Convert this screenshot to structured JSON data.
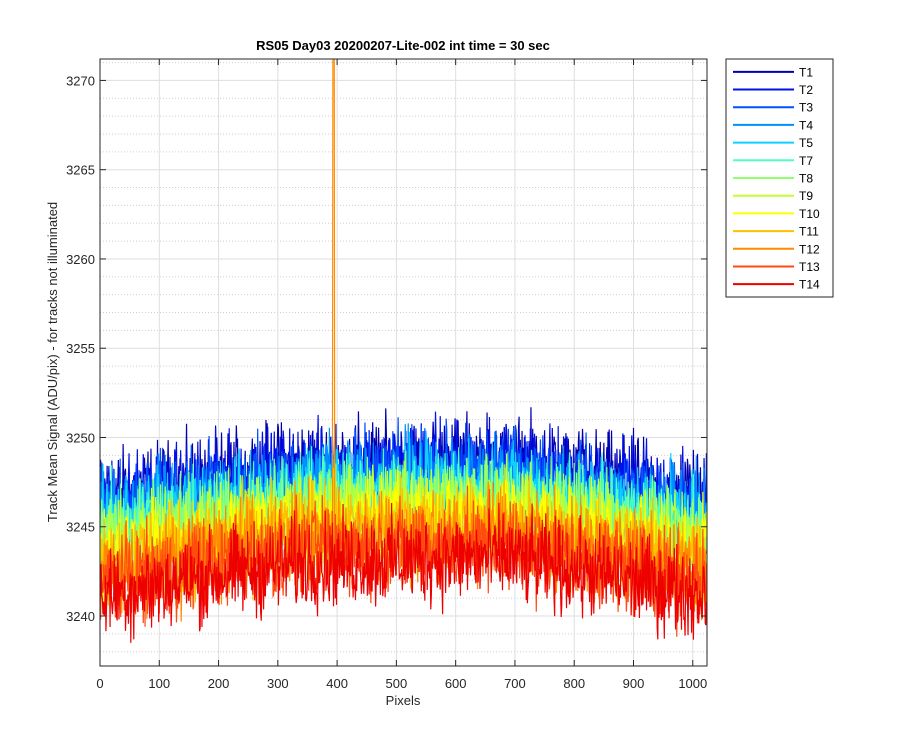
{
  "chart_data": {
    "type": "line",
    "title": "RS05 Day03 20200207-Lite-002 int time = 30 sec",
    "xlabel": "Pixels",
    "ylabel": "Track Mean Signal (ADU/pix) - for tracks not illuminated",
    "xlim": [
      0,
      1024
    ],
    "ylim": [
      3237.2,
      3271.2
    ],
    "xticks": [
      0,
      100,
      200,
      300,
      400,
      500,
      600,
      700,
      800,
      900,
      1000
    ],
    "yticks": [
      3240,
      3245,
      3250,
      3255,
      3260,
      3265,
      3270
    ],
    "grid": true,
    "minor_grid": true,
    "legend_location": "outside-top-right",
    "spike": {
      "series": "T12",
      "x": 394,
      "y_top": 3271.2
    },
    "series": [
      {
        "name": "T1",
        "color": "#0000b0",
        "profile": [
          3246.6,
          3248.4,
          3248.7,
          3246.6
        ],
        "noise": 2.2
      },
      {
        "name": "T2",
        "color": "#0010e8",
        "profile": [
          3246.3,
          3248.1,
          3248.4,
          3246.3
        ],
        "noise": 2.2
      },
      {
        "name": "T3",
        "color": "#0050ff",
        "profile": [
          3245.9,
          3247.7,
          3248.0,
          3245.9
        ],
        "noise": 2.2
      },
      {
        "name": "T4",
        "color": "#0090ff",
        "profile": [
          3245.5,
          3247.3,
          3247.6,
          3245.5
        ],
        "noise": 2.2
      },
      {
        "name": "T5",
        "color": "#10d0ff",
        "profile": [
          3245.1,
          3246.9,
          3247.2,
          3245.1
        ],
        "noise": 2.2
      },
      {
        "name": "T7",
        "color": "#50ffc0",
        "profile": [
          3244.7,
          3246.5,
          3246.8,
          3244.7
        ],
        "noise": 2.2
      },
      {
        "name": "T8",
        "color": "#90ff70",
        "profile": [
          3244.3,
          3246.1,
          3246.4,
          3244.3
        ],
        "noise": 2.2
      },
      {
        "name": "T9",
        "color": "#c0ff30",
        "profile": [
          3243.9,
          3245.7,
          3246.0,
          3243.9
        ],
        "noise": 2.2
      },
      {
        "name": "T10",
        "color": "#ffff00",
        "profile": [
          3243.5,
          3245.3,
          3245.6,
          3243.5
        ],
        "noise": 2.2
      },
      {
        "name": "T11",
        "color": "#ffc000",
        "profile": [
          3243.0,
          3244.8,
          3245.1,
          3243.0
        ],
        "noise": 2.2
      },
      {
        "name": "T12",
        "color": "#ff8c00",
        "profile": [
          3242.5,
          3244.3,
          3244.6,
          3242.5
        ],
        "noise": 2.2
      },
      {
        "name": "T13",
        "color": "#ff4a10",
        "profile": [
          3241.9,
          3243.7,
          3244.0,
          3241.9
        ],
        "noise": 2.2
      },
      {
        "name": "T14",
        "color": "#ee0000",
        "profile": [
          3241.2,
          3243.0,
          3243.3,
          3241.2
        ],
        "noise": 2.2
      }
    ]
  }
}
